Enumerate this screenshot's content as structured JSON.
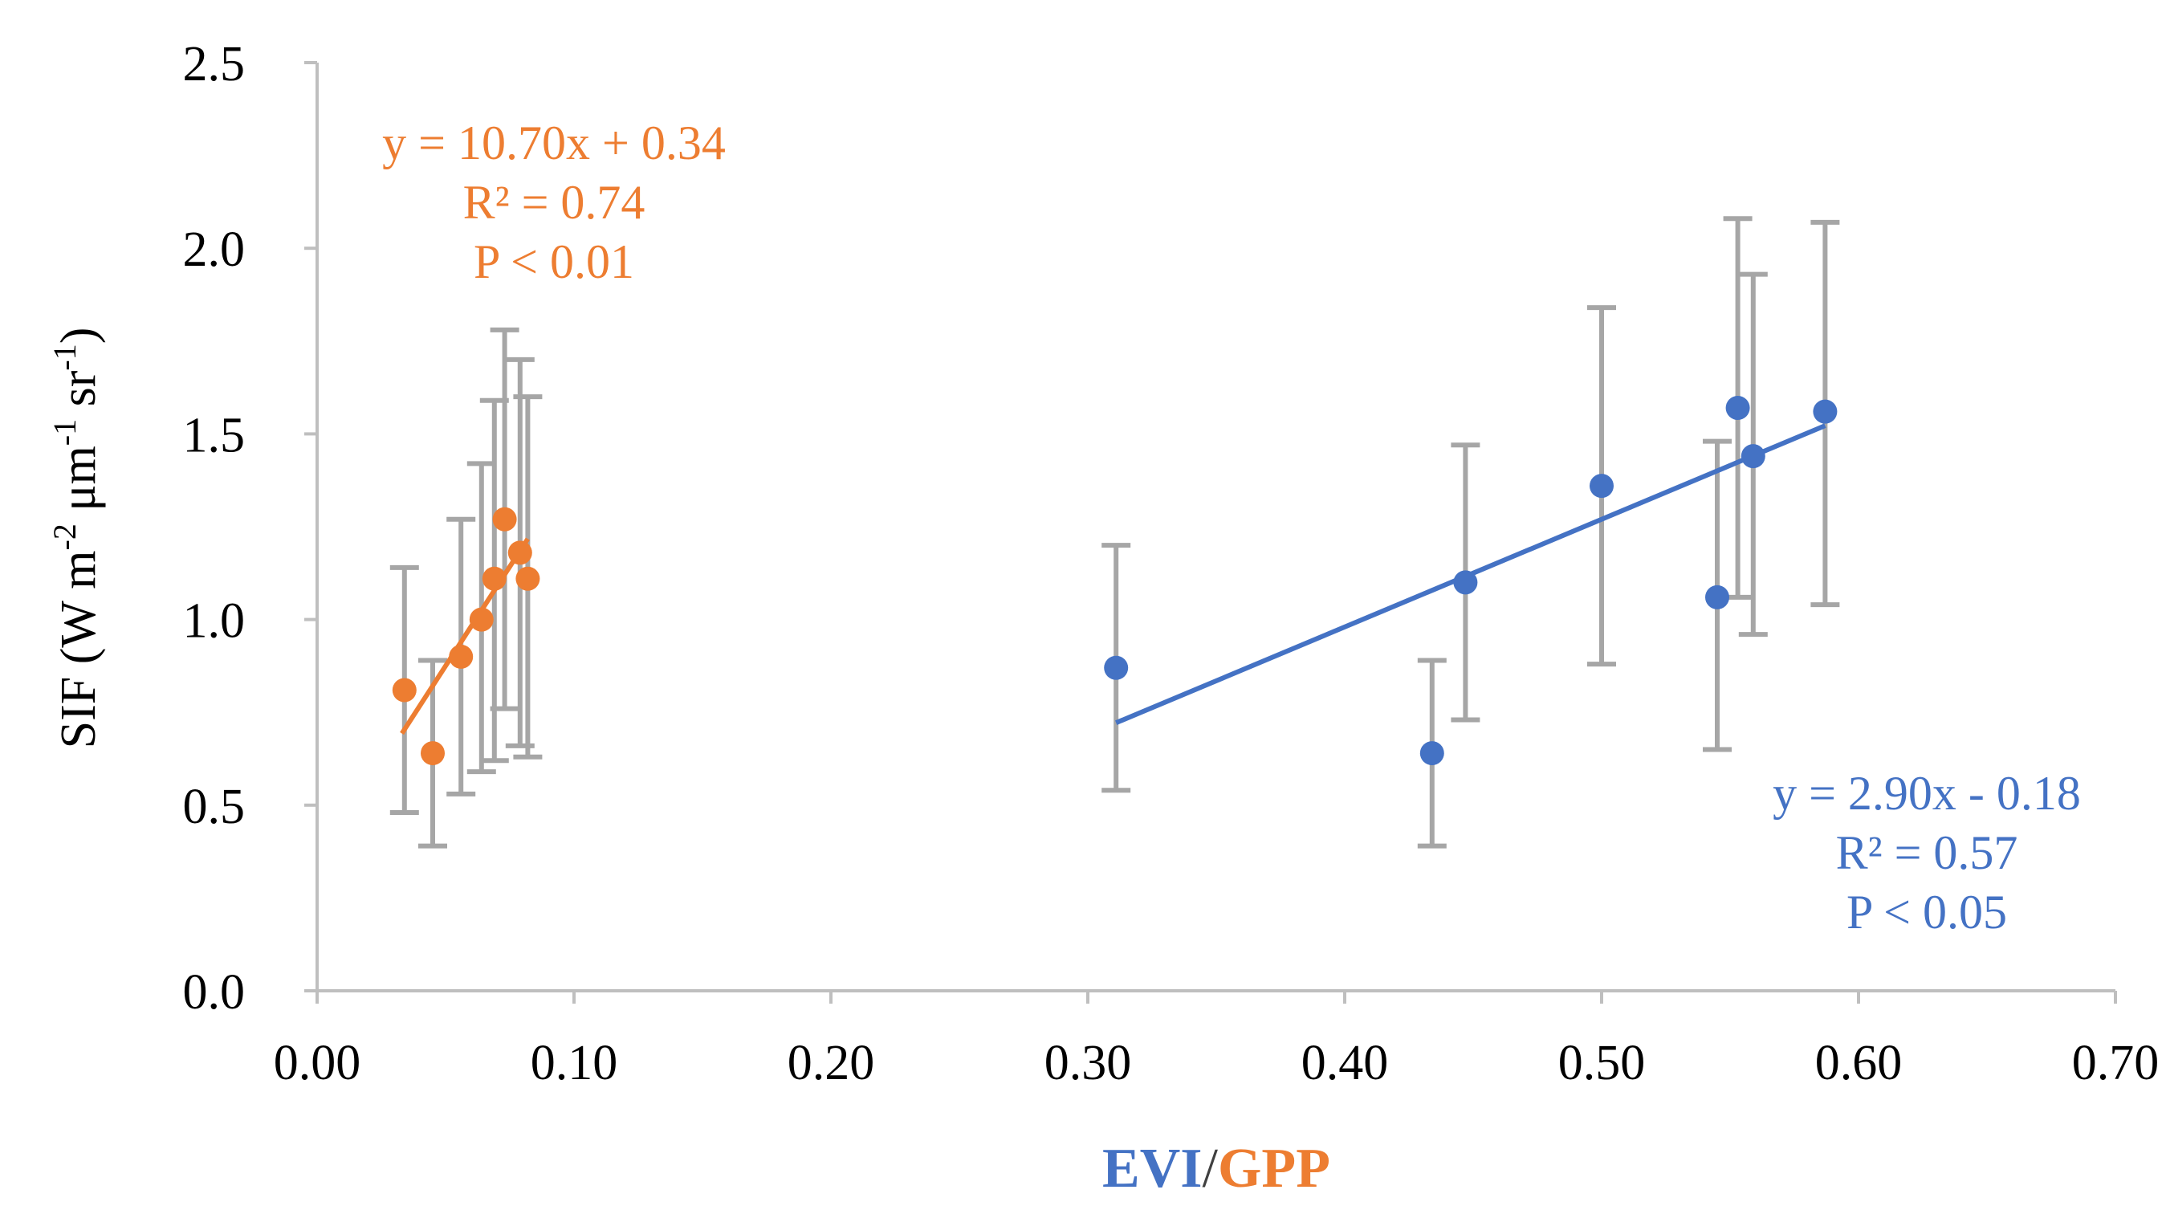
{
  "chart_data": {
    "type": "scatter",
    "title": "",
    "ylabel": {
      "sif": "SIF",
      "open": "(W m",
      "exp1": "-2",
      "mid1": " μm",
      "exp2": "-1",
      "mid2": " sr",
      "exp3": "-1",
      "close": ")"
    },
    "xlabel": {
      "part1": "EVI",
      "sep": "/",
      "part2": "GPP"
    },
    "xlim": [
      0,
      0.7
    ],
    "ylim": [
      0,
      2.5
    ],
    "x_ticks": [
      "0.00",
      "0.10",
      "0.20",
      "0.30",
      "0.40",
      "0.50",
      "0.60",
      "0.70"
    ],
    "y_ticks": [
      "0.0",
      "0.5",
      "1.0",
      "1.5",
      "2.0",
      "2.5"
    ],
    "series": [
      {
        "name": "GPP",
        "color": "#ed7d31",
        "points": [
          {
            "x": 0.034,
            "y": 0.81,
            "err_lo": 0.48,
            "err_hi": 1.14
          },
          {
            "x": 0.045,
            "y": 0.64,
            "err_lo": 0.39,
            "err_hi": 0.89
          },
          {
            "x": 0.056,
            "y": 0.9,
            "err_lo": 0.53,
            "err_hi": 1.27
          },
          {
            "x": 0.064,
            "y": 1.0,
            "err_lo": 0.59,
            "err_hi": 1.42
          },
          {
            "x": 0.069,
            "y": 1.11,
            "err_lo": 0.62,
            "err_hi": 1.59
          },
          {
            "x": 0.073,
            "y": 1.27,
            "err_lo": 0.76,
            "err_hi": 1.78
          },
          {
            "x": 0.079,
            "y": 1.18,
            "err_lo": 0.66,
            "err_hi": 1.7
          },
          {
            "x": 0.082,
            "y": 1.11,
            "err_lo": 0.63,
            "err_hi": 1.6
          }
        ],
        "trendline": {
          "x_start": 0.033,
          "x_end": 0.082,
          "slope": 10.7,
          "intercept": 0.34
        },
        "annotation": [
          "y = 10.70x + 0.34",
          "R² = 0.74",
          "P < 0.01"
        ]
      },
      {
        "name": "EVI",
        "color": "#4472c4",
        "points": [
          {
            "x": 0.311,
            "y": 0.87,
            "err_lo": 0.54,
            "err_hi": 1.2
          },
          {
            "x": 0.434,
            "y": 0.64,
            "err_lo": 0.39,
            "err_hi": 0.89
          },
          {
            "x": 0.447,
            "y": 1.1,
            "err_lo": 0.73,
            "err_hi": 1.47
          },
          {
            "x": 0.5,
            "y": 1.36,
            "err_lo": 0.88,
            "err_hi": 1.84
          },
          {
            "x": 0.545,
            "y": 1.06,
            "err_lo": 0.65,
            "err_hi": 1.48
          },
          {
            "x": 0.553,
            "y": 1.57,
            "err_lo": 1.06,
            "err_hi": 2.08
          },
          {
            "x": 0.559,
            "y": 1.44,
            "err_lo": 0.96,
            "err_hi": 1.93
          },
          {
            "x": 0.587,
            "y": 1.56,
            "err_lo": 1.04,
            "err_hi": 2.07
          }
        ],
        "trendline": {
          "x_start": 0.311,
          "x_end": 0.587,
          "slope": 2.9,
          "intercept": -0.18
        },
        "annotation": [
          "y = 2.90x - 0.18",
          "R² = 0.57",
          "P < 0.05"
        ]
      }
    ]
  }
}
